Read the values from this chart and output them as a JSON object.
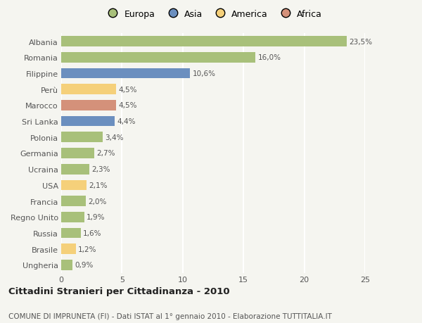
{
  "categories": [
    "Albania",
    "Romania",
    "Filippine",
    "Perù",
    "Marocco",
    "Sri Lanka",
    "Polonia",
    "Germania",
    "Ucraina",
    "USA",
    "Francia",
    "Regno Unito",
    "Russia",
    "Brasile",
    "Ungheria"
  ],
  "values": [
    23.5,
    16.0,
    10.6,
    4.5,
    4.5,
    4.4,
    3.4,
    2.7,
    2.3,
    2.1,
    2.0,
    1.9,
    1.6,
    1.2,
    0.9
  ],
  "labels": [
    "23,5%",
    "16,0%",
    "10,6%",
    "4,5%",
    "4,5%",
    "4,4%",
    "3,4%",
    "2,7%",
    "2,3%",
    "2,1%",
    "2,0%",
    "1,9%",
    "1,6%",
    "1,2%",
    "0,9%"
  ],
  "colors": [
    "#a8c07a",
    "#a8c07a",
    "#6b8fbf",
    "#f5d07a",
    "#d4917a",
    "#6b8fbf",
    "#a8c07a",
    "#a8c07a",
    "#a8c07a",
    "#f5d07a",
    "#a8c07a",
    "#a8c07a",
    "#a8c07a",
    "#f5d07a",
    "#a8c07a"
  ],
  "legend_labels": [
    "Europa",
    "Asia",
    "America",
    "Africa"
  ],
  "legend_colors": [
    "#a8c07a",
    "#6b8fbf",
    "#f5d07a",
    "#d4917a"
  ],
  "title": "Cittadini Stranieri per Cittadinanza - 2010",
  "subtitle": "COMUNE DI IMPRUNETA (FI) - Dati ISTAT al 1° gennaio 2010 - Elaborazione TUTTITALIA.IT",
  "xlim": [
    0,
    25
  ],
  "xticks": [
    0,
    5,
    10,
    15,
    20,
    25
  ],
  "background_color": "#f5f5f0",
  "grid_color": "#ffffff",
  "bar_height": 0.65,
  "label_fontsize": 7.5,
  "ytick_fontsize": 8.0,
  "xtick_fontsize": 8.0,
  "legend_fontsize": 9.0,
  "title_fontsize": 9.5,
  "subtitle_fontsize": 7.5
}
